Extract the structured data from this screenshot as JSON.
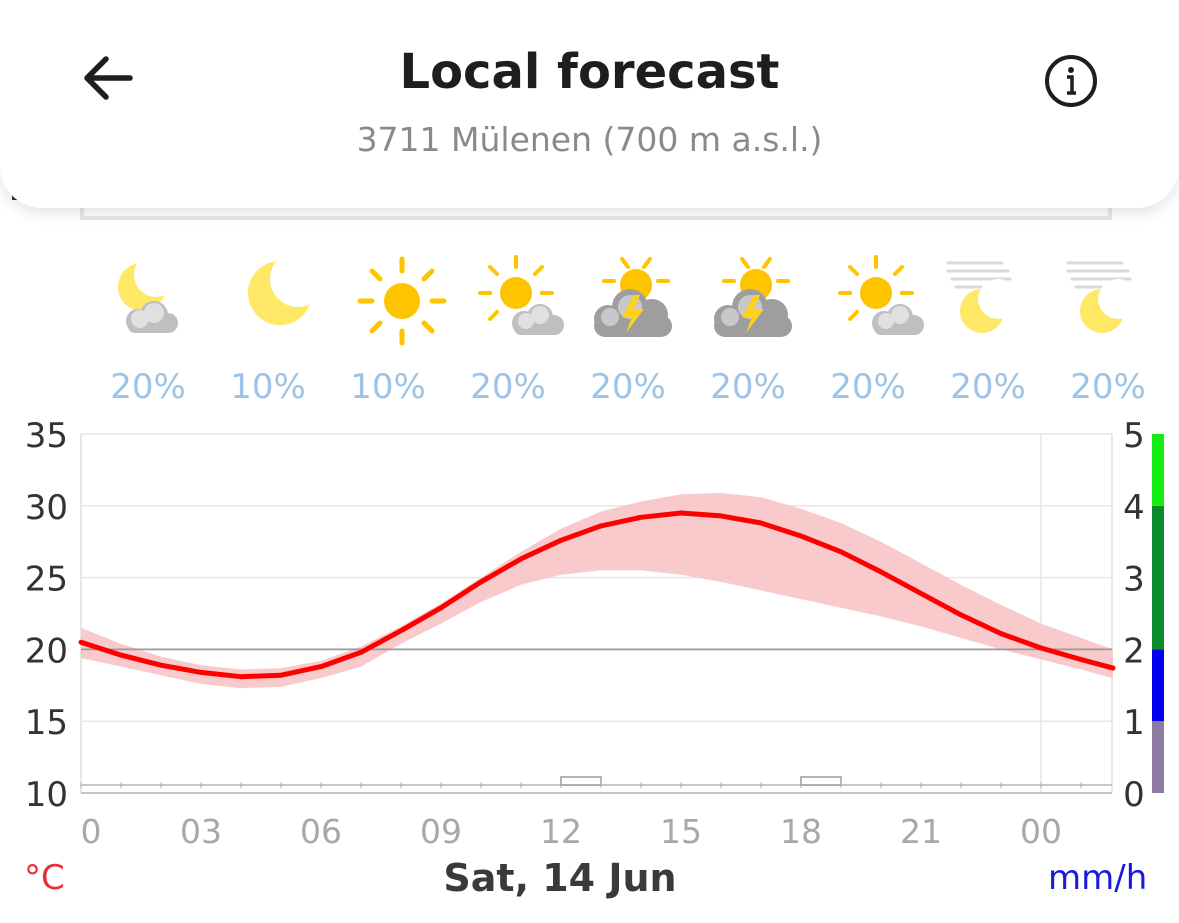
{
  "header": {
    "title": "Local forecast",
    "location": "3711 Mülenen (700 m a.s.l.)"
  },
  "hourly_icons": [
    {
      "icon": "moon-cloud-icon",
      "precip_prob": "20%"
    },
    {
      "icon": "moon-icon",
      "precip_prob": "10%"
    },
    {
      "icon": "sun-icon",
      "precip_prob": "10%"
    },
    {
      "icon": "sun-cloud-icon",
      "precip_prob": "20%"
    },
    {
      "icon": "thunderstorm-sun-icon",
      "precip_prob": "20%"
    },
    {
      "icon": "thunderstorm-sun-icon",
      "precip_prob": "20%"
    },
    {
      "icon": "sun-cloud-icon",
      "precip_prob": "20%"
    },
    {
      "icon": "fog-moon-icon",
      "precip_prob": "20%"
    },
    {
      "icon": "fog-moon-icon",
      "precip_prob": "20%"
    }
  ],
  "footer": {
    "temp_unit": "°C",
    "date": "Sat, 14 Jun",
    "precip_unit": "mm/h"
  },
  "colors": {
    "temperature_line": "#ff0000",
    "temperature_band": "#f8c4c6",
    "precip_unit": "#1a1adf",
    "temp_unit": "#e8303a"
  },
  "chart_data": {
    "type": "line",
    "x_ticks": [
      "0",
      "03",
      "06",
      "09",
      "12",
      "15",
      "18",
      "21",
      "00"
    ],
    "x": [
      0,
      1,
      2,
      3,
      4,
      5,
      6,
      7,
      8,
      9,
      10,
      11,
      12,
      13,
      14,
      15,
      16,
      17,
      18,
      19,
      20,
      21,
      22,
      23,
      24,
      25,
      25.8
    ],
    "series": [
      {
        "values": [
          20.5,
          19.6,
          18.9,
          18.4,
          18.1,
          18.2,
          18.8,
          19.8,
          21.3,
          22.9,
          24.7,
          26.3,
          27.6,
          28.6,
          29.2,
          29.5,
          29.3,
          28.8,
          27.9,
          26.8,
          25.4,
          23.9,
          22.4,
          21.1,
          20.1,
          19.3,
          18.7
        ]
      }
    ],
    "band_upper": [
      21.5,
      20.4,
      19.5,
      18.9,
      18.6,
      18.7,
      19.2,
      20.2,
      21.6,
      23.2,
      25.0,
      26.8,
      28.4,
      29.6,
      30.3,
      30.8,
      30.9,
      30.6,
      29.8,
      28.8,
      27.5,
      26.0,
      24.5,
      23.1,
      21.8,
      20.8,
      20.0
    ],
    "band_lower": [
      19.4,
      18.8,
      18.2,
      17.6,
      17.3,
      17.4,
      18.0,
      18.8,
      20.4,
      21.8,
      23.3,
      24.5,
      25.2,
      25.5,
      25.5,
      25.2,
      24.7,
      24.1,
      23.5,
      22.9,
      22.3,
      21.6,
      20.8,
      20.0,
      19.3,
      18.6,
      18.0
    ],
    "precip_mm_h": [
      0,
      0,
      0,
      0,
      0,
      0,
      0,
      0,
      0,
      0,
      0,
      0,
      0.1,
      0,
      0,
      0,
      0,
      0,
      0.1,
      0,
      0,
      0,
      0,
      0,
      0,
      0
    ],
    "ylim_left": [
      10,
      35
    ],
    "y_ticks_left": [
      "35",
      "30",
      "25",
      "20",
      "15",
      "10"
    ],
    "ylim_right": [
      0,
      5
    ],
    "y_ticks_right": [
      "5",
      "4",
      "3",
      "2",
      "1",
      "0"
    ],
    "reference_line": 20,
    "precip_scale": [
      {
        "from": 0,
        "to": 1,
        "color": "#8e7aa0"
      },
      {
        "from": 1,
        "to": 2,
        "color": "#0000ee"
      },
      {
        "from": 2,
        "to": 4,
        "color": "#0a8a2a"
      },
      {
        "from": 4,
        "to": 5,
        "color": "#12ee12"
      }
    ]
  }
}
